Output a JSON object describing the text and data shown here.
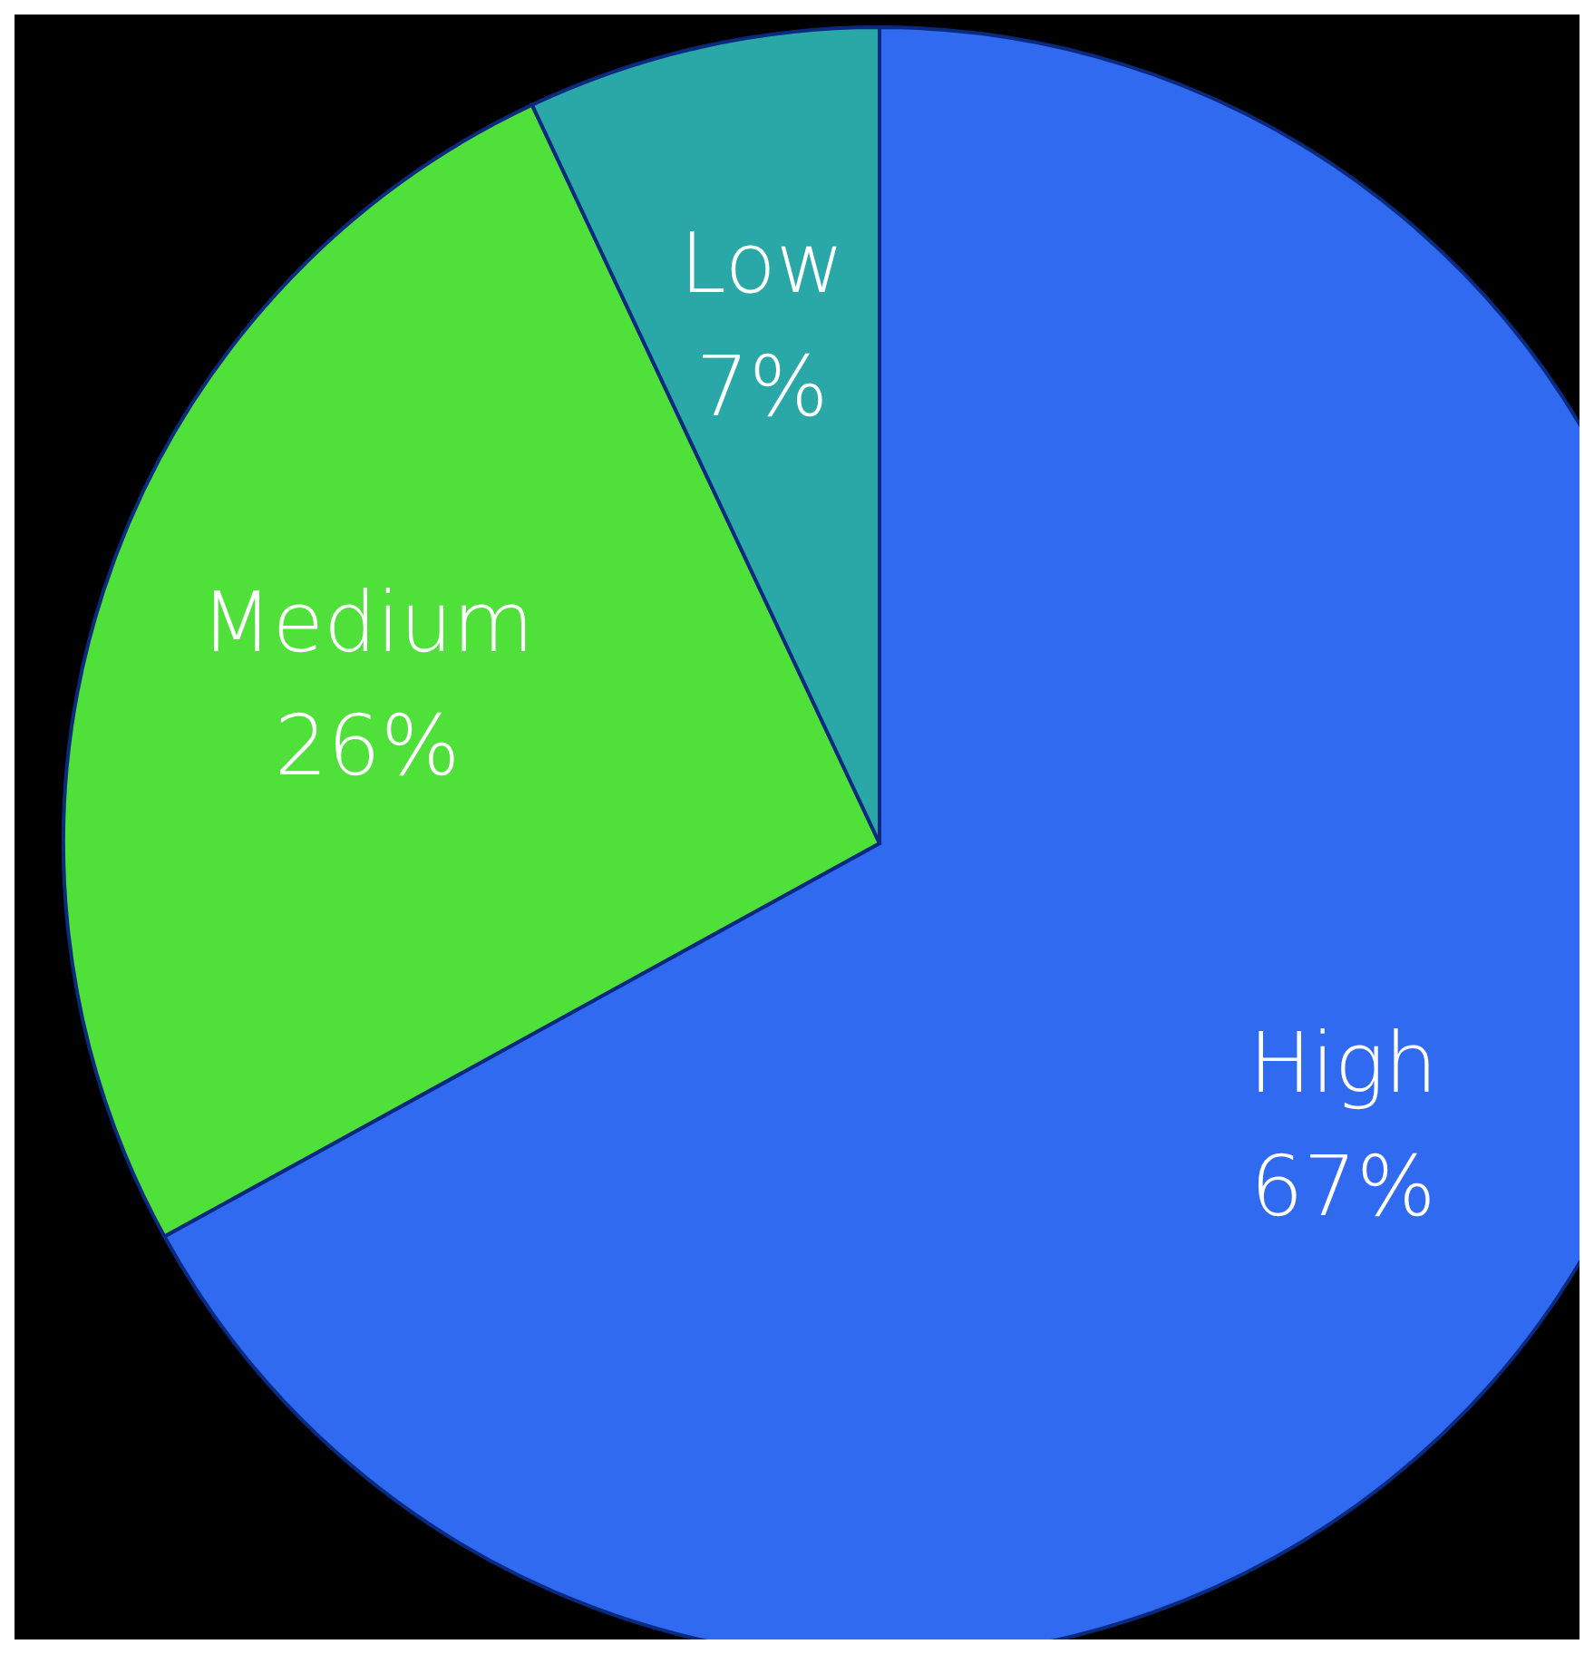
{
  "chart_data": {
    "type": "pie",
    "categories": [
      "High",
      "Medium",
      "Low"
    ],
    "values": [
      67,
      26,
      7
    ],
    "value_labels": [
      "67%",
      "26%",
      "7%"
    ],
    "colors": [
      "#2f6af0",
      "#4fe03a",
      "#2aa8a8"
    ],
    "legend": false
  }
}
